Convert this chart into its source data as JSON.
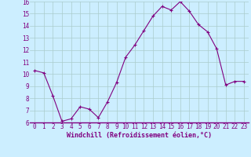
{
  "x": [
    0,
    1,
    2,
    3,
    4,
    5,
    6,
    7,
    8,
    9,
    10,
    11,
    12,
    13,
    14,
    15,
    16,
    17,
    18,
    19,
    20,
    21,
    22,
    23
  ],
  "y": [
    10.3,
    10.1,
    8.2,
    6.1,
    6.3,
    7.3,
    7.1,
    6.4,
    7.7,
    9.3,
    11.4,
    12.4,
    13.6,
    14.8,
    15.6,
    15.3,
    16.0,
    15.2,
    14.1,
    13.5,
    12.1,
    9.1,
    9.4,
    9.4
  ],
  "line_color": "#800080",
  "marker": "+",
  "marker_size": 3,
  "marker_color": "#800080",
  "bg_color": "#cceeff",
  "grid_color": "#aacccc",
  "xlabel": "Windchill (Refroidissement éolien,°C)",
  "xlabel_color": "#800080",
  "tick_color": "#800080",
  "ylim": [
    6,
    16
  ],
  "xlim": [
    -0.5,
    23.5
  ],
  "yticks": [
    6,
    7,
    8,
    9,
    10,
    11,
    12,
    13,
    14,
    15,
    16
  ],
  "xticks": [
    0,
    1,
    2,
    3,
    4,
    5,
    6,
    7,
    8,
    9,
    10,
    11,
    12,
    13,
    14,
    15,
    16,
    17,
    18,
    19,
    20,
    21,
    22,
    23
  ],
  "font_family": "monospace",
  "tick_fontsize": 5.5,
  "xlabel_fontsize": 6.0
}
